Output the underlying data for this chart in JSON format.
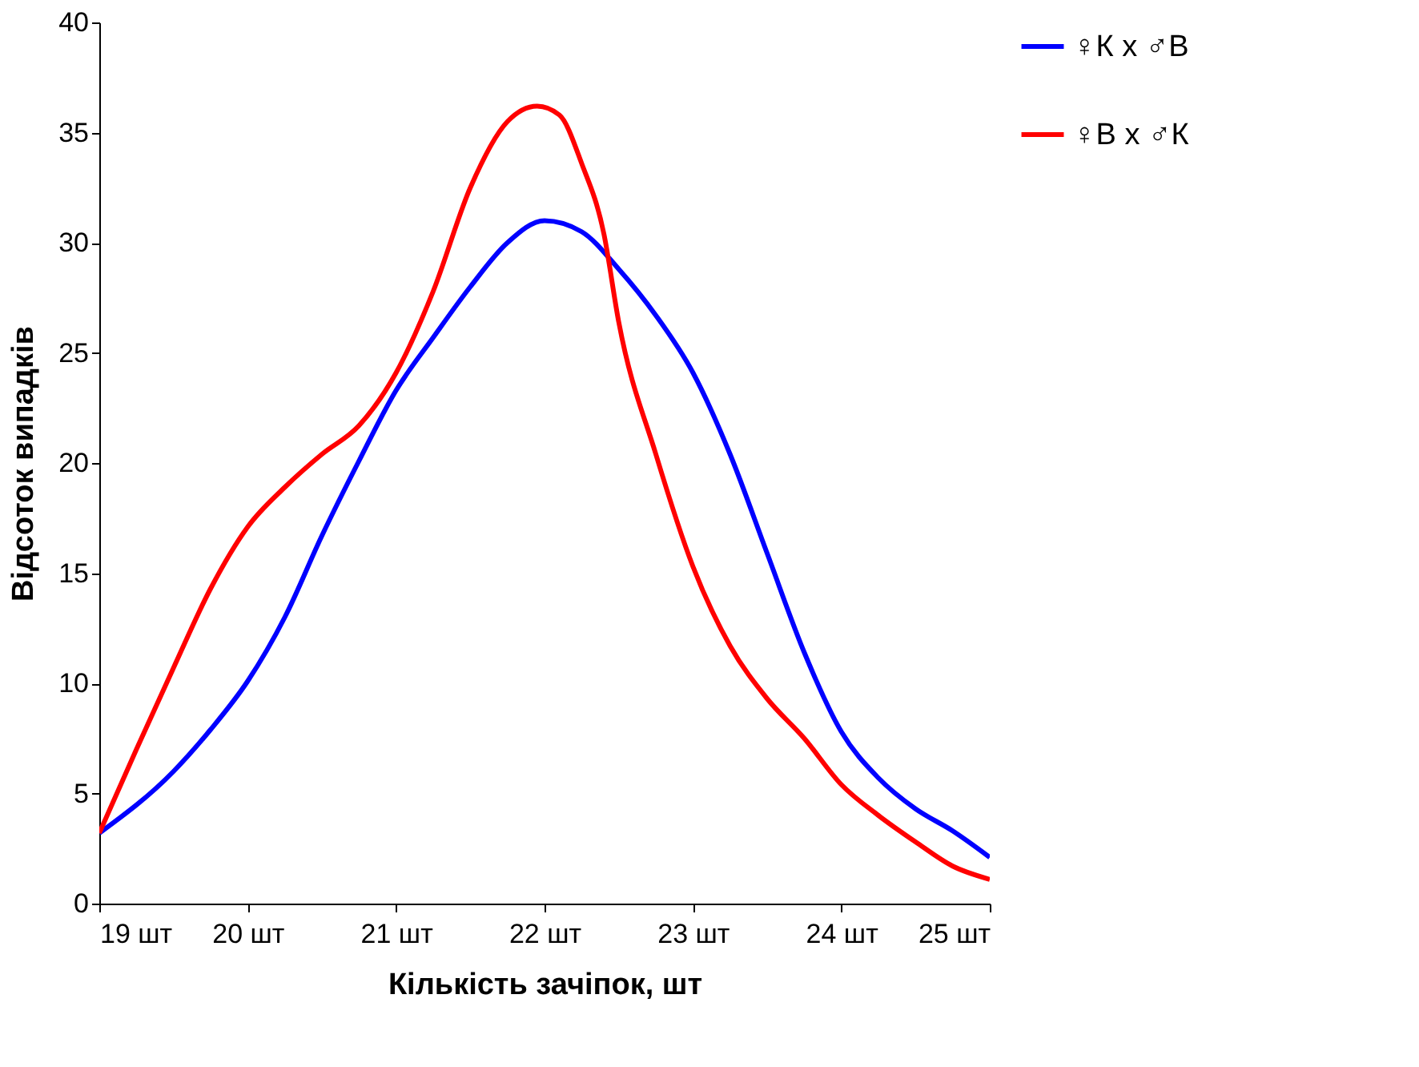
{
  "chart_data": {
    "type": "line",
    "xlabel": "Кількість зачіпок, шт",
    "ylabel": "Відсоток випадків",
    "xlim": [
      19,
      25
    ],
    "ylim": [
      0,
      40
    ],
    "xticks": [
      {
        "value": 19,
        "label": "19 шт"
      },
      {
        "value": 20,
        "label": "20 шт"
      },
      {
        "value": 21,
        "label": "21 шт"
      },
      {
        "value": 22,
        "label": "22 шт"
      },
      {
        "value": 23,
        "label": "23 шт"
      },
      {
        "value": 24,
        "label": "24 шт"
      },
      {
        "value": 25,
        "label": "25 шт"
      }
    ],
    "yticks": [
      0,
      5,
      10,
      15,
      20,
      25,
      30,
      35,
      40
    ],
    "grid": false,
    "legend": "right",
    "marker": "none",
    "line_style": "solid",
    "series": [
      {
        "name": "♀К x ♂В",
        "color": "#0000ff",
        "x": [
          19,
          19.5,
          19.75,
          20,
          20.25,
          20.5,
          20.75,
          21,
          21.25,
          21.5,
          21.75,
          22,
          22.25,
          22.5,
          22.75,
          23,
          23.25,
          23.5,
          23.75,
          24,
          24.25,
          24.5,
          24.75,
          25
        ],
        "values": [
          3.2,
          6.0,
          7.9,
          10.1,
          13.0,
          16.7,
          20.1,
          23.3,
          25.7,
          28.0,
          30.0,
          31.0,
          30.5,
          28.8,
          26.7,
          24.1,
          20.4,
          15.9,
          11.4,
          7.8,
          5.7,
          4.3,
          3.3,
          2.1
        ]
      },
      {
        "name": "♀В x ♂К",
        "color": "#ff0000",
        "x": [
          19,
          19.25,
          19.5,
          19.75,
          20,
          20.25,
          20.5,
          20.75,
          21,
          21.25,
          21.5,
          21.75,
          21.95,
          22.1,
          22.25,
          22.4,
          22.5,
          22.75,
          23,
          23.25,
          23.5,
          23.75,
          24,
          24.25,
          24.5,
          24.75,
          25
        ],
        "values": [
          3.2,
          7.0,
          10.7,
          14.3,
          17.1,
          18.9,
          20.4,
          21.7,
          24.1,
          27.8,
          32.5,
          35.5,
          36.2,
          35.8,
          33.6,
          30.4,
          26.4,
          20.4,
          15.3,
          11.7,
          9.3,
          7.5,
          5.4,
          4.0,
          2.8,
          1.7,
          1.1
        ]
      }
    ]
  }
}
